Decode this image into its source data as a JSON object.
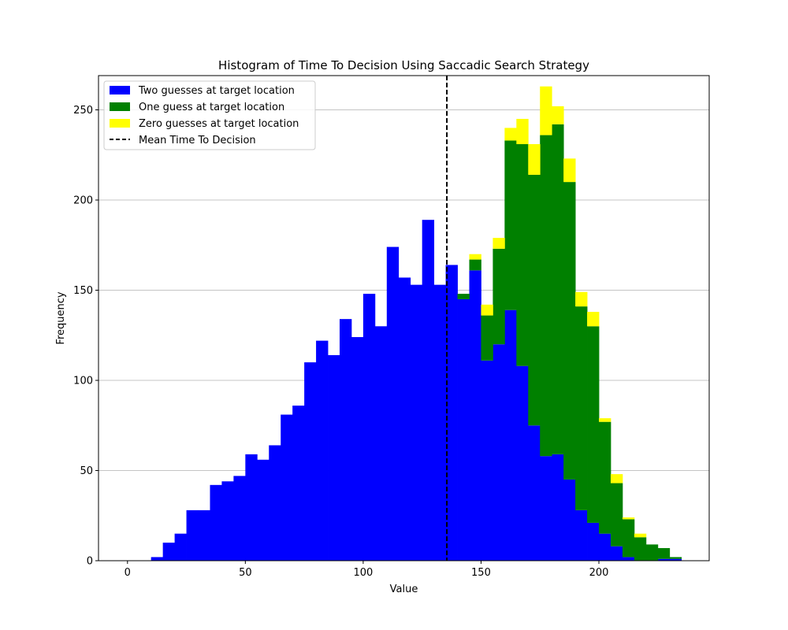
{
  "chart_data": {
    "type": "bar",
    "title": "Histogram of Time To Decision Using Saccadic Search Strategy",
    "xlabel": "Value",
    "ylabel": "Frequency",
    "xlim": [
      -12.3,
      246.8
    ],
    "ylim": [
      0,
      269
    ],
    "xticks": [
      0,
      50,
      100,
      150,
      200
    ],
    "yticks": [
      0,
      50,
      100,
      150,
      200,
      250
    ],
    "grid": "y-major",
    "legend_position": "upper left",
    "bin_width": 5,
    "bin_starts": [
      10,
      15,
      20,
      25,
      30,
      35,
      40,
      45,
      50,
      55,
      60,
      65,
      70,
      75,
      80,
      85,
      90,
      95,
      100,
      105,
      110,
      115,
      120,
      125,
      130,
      135,
      140,
      145,
      150,
      155,
      160,
      165,
      170,
      175,
      180,
      185,
      190,
      195,
      200,
      205,
      210,
      215,
      220,
      225,
      230
    ],
    "series": [
      {
        "name": "Two guesses at target location",
        "color": "#0000ff",
        "values": [
          2,
          10,
          15,
          28,
          28,
          42,
          44,
          47,
          59,
          56,
          64,
          81,
          86,
          110,
          122,
          114,
          134,
          124,
          148,
          130,
          174,
          157,
          153,
          189,
          153,
          164,
          145,
          161,
          111,
          120,
          139,
          108,
          75,
          58,
          59,
          45,
          28,
          21,
          15,
          8,
          2,
          0,
          0,
          1,
          1
        ]
      },
      {
        "name": "One guess at target location",
        "color": "#008000",
        "values": [
          0,
          0,
          0,
          0,
          0,
          0,
          0,
          0,
          0,
          0,
          0,
          0,
          0,
          0,
          0,
          0,
          0,
          0,
          0,
          0,
          0,
          0,
          0,
          0,
          0,
          0,
          3,
          6,
          25,
          53,
          94,
          123,
          139,
          178,
          183,
          165,
          113,
          109,
          62,
          35,
          21,
          13,
          9,
          6,
          1
        ]
      },
      {
        "name": "Zero guesses at target location",
        "color": "#ffff00",
        "values": [
          0,
          0,
          0,
          0,
          0,
          0,
          0,
          0,
          0,
          0,
          0,
          0,
          0,
          0,
          0,
          0,
          0,
          0,
          0,
          0,
          0,
          0,
          0,
          0,
          0,
          0,
          0,
          3,
          6,
          6,
          7,
          14,
          17,
          27,
          10,
          13,
          8,
          8,
          2,
          5,
          1,
          2,
          0,
          0,
          0
        ]
      }
    ],
    "mean_line": {
      "name": "Mean Time To Decision",
      "x": 135.5,
      "color": "#000000",
      "style": "dashed"
    }
  }
}
